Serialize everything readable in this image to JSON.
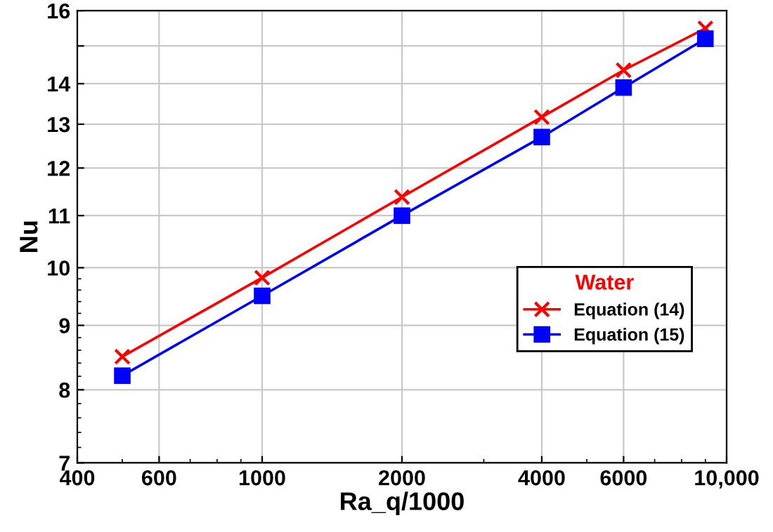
{
  "chart_data": {
    "type": "line",
    "xlabel": "Ra_q/1000",
    "ylabel": "Nu",
    "log": "xy",
    "legend_title": "Water",
    "legend": "center right",
    "grid": true,
    "x": [
      500,
      1000,
      2000,
      4000,
      6000,
      9000
    ],
    "series": [
      {
        "name": "Equation (14)",
        "color": "#ff0000",
        "marker": "cross",
        "values": [
          8.5,
          9.82,
          11.38,
          13.17,
          14.35,
          15.49
        ]
      },
      {
        "name": "Equation (15)",
        "color": "#0000ff",
        "marker": "square",
        "values": [
          8.21,
          9.5,
          11.0,
          12.7,
          13.9,
          15.2
        ]
      }
    ],
    "xlim": [
      400,
      10000
    ],
    "xticks": [
      400,
      600,
      1000,
      2000,
      4000,
      6000,
      {
        "value": 10000,
        "label": "10,000"
      }
    ],
    "ylim": [
      7,
      16
    ],
    "yticks": [
      7,
      8,
      9,
      10,
      11,
      12,
      13,
      14,
      {
        "value": 15,
        "label": null
      },
      16
    ]
  }
}
